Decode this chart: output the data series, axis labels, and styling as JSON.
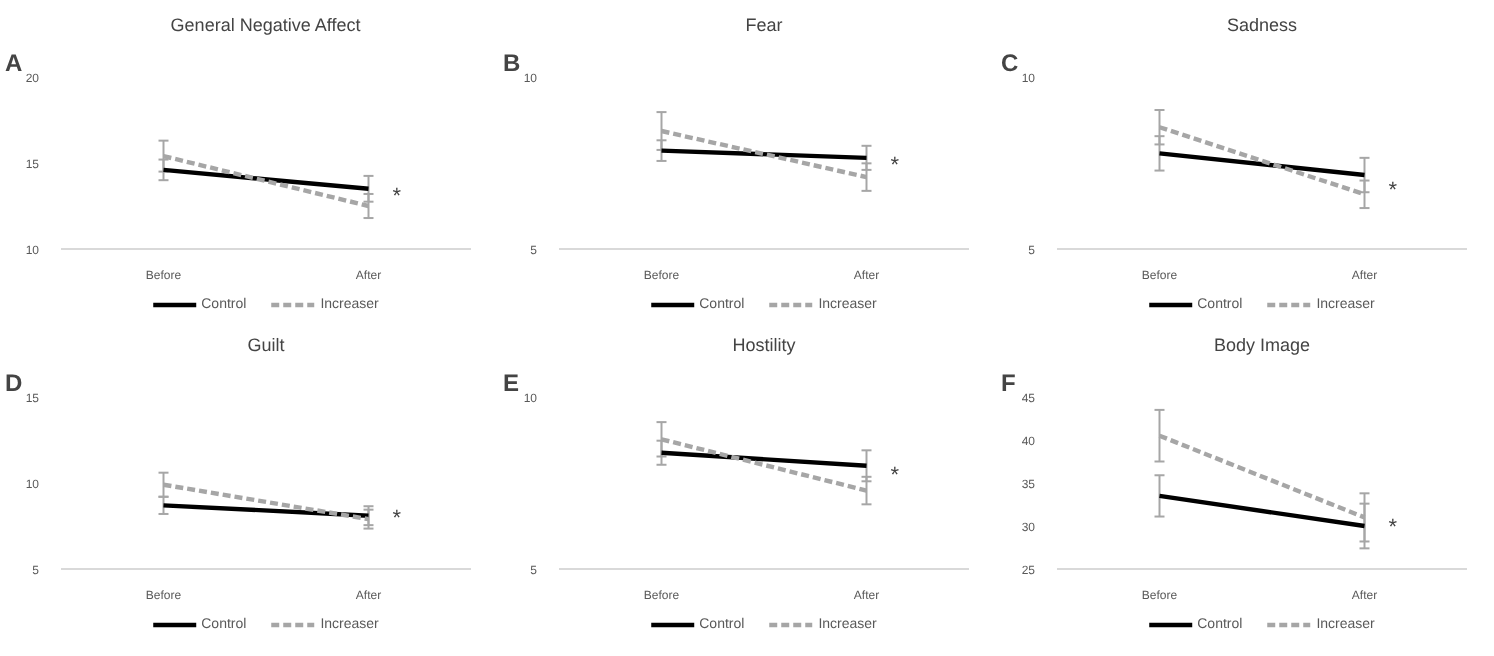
{
  "chart_data": [
    {
      "type": "line",
      "title": "General Negative Affect",
      "categories": [
        "Before",
        "After"
      ],
      "ylim": [
        10,
        20
      ],
      "yticks": [
        10,
        15,
        20
      ],
      "grid": false,
      "legend": "bottom",
      "marker": "none",
      "annotations": [
        "A",
        {
          "text": "*",
          "x": "After",
          "y": 13.0
        }
      ],
      "series": [
        {
          "name": "Control",
          "color": "#000000",
          "line_style": "solid",
          "values": [
            14.6,
            13.5
          ],
          "errors": [
            0.6,
            0.75
          ]
        },
        {
          "name": "Increaser",
          "color": "#a6a6a6",
          "line_style": "dashed",
          "values": [
            15.4,
            12.5
          ],
          "errors": [
            0.9,
            0.7
          ]
        }
      ]
    },
    {
      "type": "line",
      "title": "Fear",
      "categories": [
        "Before",
        "After"
      ],
      "ylim": [
        5,
        10
      ],
      "yticks": [
        5,
        10
      ],
      "grid": false,
      "legend": "bottom",
      "marker": "none",
      "annotations": [
        "B",
        {
          "text": "*",
          "x": "After",
          "y": 7.4
        }
      ],
      "series": [
        {
          "name": "Control",
          "color": "#000000",
          "line_style": "solid",
          "values": [
            7.86,
            7.65
          ],
          "errors": [
            0.3,
            0.35
          ]
        },
        {
          "name": "Increaser",
          "color": "#a6a6a6",
          "line_style": "dashed",
          "values": [
            8.43,
            7.09
          ],
          "errors": [
            0.55,
            0.4
          ]
        }
      ]
    },
    {
      "type": "line",
      "title": "Sadness",
      "categories": [
        "Before",
        "After"
      ],
      "ylim": [
        5,
        10
      ],
      "yticks": [
        5,
        10
      ],
      "grid": false,
      "legend": "bottom",
      "marker": "none",
      "annotations": [
        "C",
        {
          "text": "*",
          "x": "After",
          "y": 6.7
        }
      ],
      "series": [
        {
          "name": "Control",
          "color": "#000000",
          "line_style": "solid",
          "values": [
            7.78,
            7.15
          ],
          "errors": [
            0.5,
            0.5
          ]
        },
        {
          "name": "Increaser",
          "color": "#a6a6a6",
          "line_style": "dashed",
          "values": [
            8.54,
            6.59
          ],
          "errors": [
            0.5,
            0.4
          ]
        }
      ]
    },
    {
      "type": "line",
      "title": "Guilt",
      "categories": [
        "Before",
        "After"
      ],
      "ylim": [
        5,
        15
      ],
      "yticks": [
        5,
        10,
        15
      ],
      "grid": false,
      "legend": "bottom",
      "marker": "none",
      "annotations": [
        "D",
        {
          "text": "*",
          "x": "After",
          "y": 7.9
        }
      ],
      "series": [
        {
          "name": "Control",
          "color": "#000000",
          "line_style": "solid",
          "values": [
            8.7,
            8.1
          ],
          "errors": [
            0.5,
            0.55
          ]
        },
        {
          "name": "Increaser",
          "color": "#a6a6a6",
          "line_style": "dashed",
          "values": [
            9.9,
            7.9
          ],
          "errors": [
            0.7,
            0.55
          ]
        }
      ]
    },
    {
      "type": "line",
      "title": "Hostility",
      "categories": [
        "Before",
        "After"
      ],
      "ylim": [
        5,
        10
      ],
      "yticks": [
        5,
        10
      ],
      "grid": false,
      "legend": "bottom",
      "marker": "none",
      "annotations": [
        "E",
        {
          "text": "*",
          "x": "After",
          "y": 7.7
        }
      ],
      "series": [
        {
          "name": "Control",
          "color": "#000000",
          "line_style": "solid",
          "values": [
            8.38,
            8.0
          ],
          "errors": [
            0.35,
            0.45
          ]
        },
        {
          "name": "Increaser",
          "color": "#a6a6a6",
          "line_style": "dashed",
          "values": [
            8.77,
            7.28
          ],
          "errors": [
            0.5,
            0.4
          ]
        }
      ]
    },
    {
      "type": "line",
      "title": "Body Image",
      "categories": [
        "Before",
        "After"
      ],
      "ylim": [
        25,
        45
      ],
      "yticks": [
        25,
        30,
        35,
        40,
        45
      ],
      "grid": false,
      "legend": "bottom",
      "marker": "none",
      "annotations": [
        "F",
        {
          "text": "*",
          "x": "After",
          "y": 29.8
        }
      ],
      "series": [
        {
          "name": "Control",
          "color": "#000000",
          "line_style": "solid",
          "values": [
            33.5,
            30
          ],
          "errors": [
            2.4,
            2.6
          ]
        },
        {
          "name": "Increaser",
          "color": "#a6a6a6",
          "line_style": "dashed",
          "values": [
            40.5,
            31
          ],
          "errors": [
            3.0,
            2.8
          ]
        }
      ]
    }
  ]
}
